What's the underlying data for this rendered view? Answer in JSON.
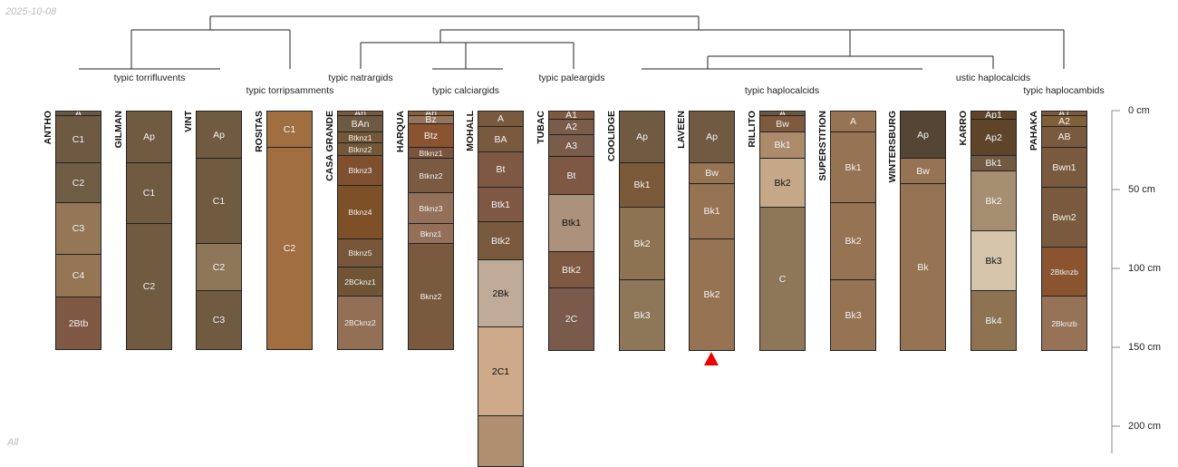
{
  "date": "2025-10-08",
  "subset_label": "All",
  "taxonomy_labels": [
    {
      "label": "typic torrifluvents"
    },
    {
      "label": "typic torripsamments"
    },
    {
      "label": "typic natrargids"
    },
    {
      "label": "typic calciargids"
    },
    {
      "label": "typic paleargids"
    },
    {
      "label": "typic haplocalcids"
    },
    {
      "label": "ustic haplocalcids"
    },
    {
      "label": "typic haplocambids"
    }
  ],
  "depth_axis": {
    "ticks": [
      0,
      50,
      100,
      150,
      200
    ],
    "unit": "cm",
    "labels": [
      "0 cm",
      "50 cm",
      "100 cm",
      "150 cm",
      "200 cm"
    ]
  },
  "marker": {
    "profile": "LAVEEN",
    "color": "#ee0000"
  },
  "profiles": [
    {
      "name": "ANTHO",
      "horizons": [
        {
          "name": "A",
          "top": 0,
          "bottom": 3,
          "color": "#6b5843"
        },
        {
          "name": "C1",
          "top": 3,
          "bottom": 33,
          "color": "#6e5a42"
        },
        {
          "name": "C2",
          "top": 33,
          "bottom": 58,
          "color": "#6f5c44"
        },
        {
          "name": "C3",
          "top": 58,
          "bottom": 91,
          "color": "#957656"
        },
        {
          "name": "C4",
          "top": 91,
          "bottom": 118,
          "color": "#957554"
        },
        {
          "name": "2Btb",
          "top": 118,
          "bottom": 151,
          "color": "#7e5843"
        }
      ]
    },
    {
      "name": "GILMAN",
      "horizons": [
        {
          "name": "Ap",
          "top": 0,
          "bottom": 33,
          "color": "#705a40"
        },
        {
          "name": "C1",
          "top": 33,
          "bottom": 71,
          "color": "#705a40"
        },
        {
          "name": "C2",
          "top": 71,
          "bottom": 151,
          "color": "#705a40"
        }
      ]
    },
    {
      "name": "VINT",
      "horizons": [
        {
          "name": "Ap",
          "top": 0,
          "bottom": 30,
          "color": "#705a40"
        },
        {
          "name": "C1",
          "top": 30,
          "bottom": 84,
          "color": "#705a40"
        },
        {
          "name": "C2",
          "top": 84,
          "bottom": 114,
          "color": "#8e7659"
        },
        {
          "name": "C3",
          "top": 114,
          "bottom": 151,
          "color": "#705a40"
        }
      ]
    },
    {
      "name": "ROSITAS",
      "horizons": [
        {
          "name": "C1",
          "top": 0,
          "bottom": 23,
          "color": "#a06e40"
        },
        {
          "name": "C2",
          "top": 23,
          "bottom": 151,
          "color": "#a06e40"
        }
      ]
    },
    {
      "name": "CASA GRANDE",
      "horizons": [
        {
          "name": "An",
          "top": 0,
          "bottom": 3,
          "color": "#7a5a3e"
        },
        {
          "name": "BAn",
          "top": 3,
          "bottom": 13,
          "color": "#6e5a42"
        },
        {
          "name": "Btknz1",
          "top": 13,
          "bottom": 20,
          "color": "#735838"
        },
        {
          "name": "Btknz2",
          "top": 20,
          "bottom": 28,
          "color": "#735838"
        },
        {
          "name": "Btknz3",
          "top": 28,
          "bottom": 47,
          "color": "#7e5030"
        },
        {
          "name": "Btknz4",
          "top": 47,
          "bottom": 81,
          "color": "#7e5028"
        },
        {
          "name": "Btknz5",
          "top": 81,
          "bottom": 99,
          "color": "#775639"
        },
        {
          "name": "2BCknz1",
          "top": 99,
          "bottom": 117,
          "color": "#6f5535"
        },
        {
          "name": "2BCknz2",
          "top": 117,
          "bottom": 151,
          "color": "#936f55"
        }
      ]
    },
    {
      "name": "HARQUA",
      "horizons": [
        {
          "name": "Ap",
          "top": 0,
          "bottom": 3,
          "color": "#8a5e3a"
        },
        {
          "name": "Bz",
          "top": 3,
          "bottom": 8,
          "color": "#94745a"
        },
        {
          "name": "Btz",
          "top": 8,
          "bottom": 23,
          "color": "#8a5430"
        },
        {
          "name": "Btknz1",
          "top": 23,
          "bottom": 30,
          "color": "#7a5440"
        },
        {
          "name": "Btknz2",
          "top": 30,
          "bottom": 52,
          "color": "#7a5a40"
        },
        {
          "name": "Btknz3",
          "top": 52,
          "bottom": 71,
          "color": "#94705a"
        },
        {
          "name": "Bknz1",
          "top": 71,
          "bottom": 84,
          "color": "#94705a"
        },
        {
          "name": "Bknz2",
          "top": 84,
          "bottom": 151,
          "color": "#7a5a3e"
        }
      ]
    },
    {
      "name": "MOHALL",
      "horizons": [
        {
          "name": "A",
          "top": 0,
          "bottom": 10,
          "color": "#7a5a3e"
        },
        {
          "name": "BA",
          "top": 10,
          "bottom": 26,
          "color": "#7a5a3e"
        },
        {
          "name": "Bt",
          "top": 26,
          "bottom": 48,
          "color": "#7e5842"
        },
        {
          "name": "Btk1",
          "top": 48,
          "bottom": 70,
          "color": "#7e5842"
        },
        {
          "name": "Btk2",
          "top": 70,
          "bottom": 94,
          "color": "#7a5a3e"
        },
        {
          "name": "2Bk",
          "top": 94,
          "bottom": 137,
          "color": "#c0ab98"
        },
        {
          "name": "2C1",
          "top": 137,
          "bottom": 193,
          "color": "#cea98a"
        },
        {
          "name": "",
          "top": 193,
          "bottom": 225,
          "color": "#b08e70"
        }
      ]
    },
    {
      "name": "TUBAC",
      "horizons": [
        {
          "name": "A1",
          "top": 0,
          "bottom": 5,
          "color": "#7e5a40"
        },
        {
          "name": "A2",
          "top": 5,
          "bottom": 15,
          "color": "#7a5c4a"
        },
        {
          "name": "A3",
          "top": 15,
          "bottom": 29,
          "color": "#7a5c4a"
        },
        {
          "name": "Bt",
          "top": 29,
          "bottom": 53,
          "color": "#7e5842"
        },
        {
          "name": "Btk1",
          "top": 53,
          "bottom": 89,
          "color": "#ac917c"
        },
        {
          "name": "Btk2",
          "top": 89,
          "bottom": 112,
          "color": "#7e5840"
        },
        {
          "name": "2C",
          "top": 112,
          "bottom": 152,
          "color": "#7a5a4a"
        }
      ]
    },
    {
      "name": "COOLIDGE",
      "horizons": [
        {
          "name": "Ap",
          "top": 0,
          "bottom": 33,
          "color": "#705a42"
        },
        {
          "name": "Bk1",
          "top": 33,
          "bottom": 61,
          "color": "#7a5a38"
        },
        {
          "name": "Bk2",
          "top": 61,
          "bottom": 107,
          "color": "#8e7352"
        },
        {
          "name": "Bk3",
          "top": 107,
          "bottom": 152,
          "color": "#8e7659"
        }
      ]
    },
    {
      "name": "LAVEEN",
      "horizons": [
        {
          "name": "Ap",
          "top": 0,
          "bottom": 33,
          "color": "#705a42"
        },
        {
          "name": "Bw",
          "top": 33,
          "bottom": 46,
          "color": "#967352"
        },
        {
          "name": "Bk1",
          "top": 46,
          "bottom": 81,
          "color": "#967352"
        },
        {
          "name": "Bk2",
          "top": 81,
          "bottom": 152,
          "color": "#967352"
        }
      ]
    },
    {
      "name": "RILLITO",
      "horizons": [
        {
          "name": "A",
          "top": 0,
          "bottom": 3,
          "color": "#6b5843"
        },
        {
          "name": "Bw",
          "top": 3,
          "bottom": 13,
          "color": "#7e5a3e"
        },
        {
          "name": "Bk1",
          "top": 13,
          "bottom": 30,
          "color": "#ac8a6c"
        },
        {
          "name": "Bk2",
          "top": 30,
          "bottom": 61,
          "color": "#c4a888"
        },
        {
          "name": "C",
          "top": 61,
          "bottom": 152,
          "color": "#8e7659"
        }
      ]
    },
    {
      "name": "SUPERSTITION",
      "horizons": [
        {
          "name": "A",
          "top": 0,
          "bottom": 13,
          "color": "#967352"
        },
        {
          "name": "Bk1",
          "top": 13,
          "bottom": 58,
          "color": "#967352"
        },
        {
          "name": "Bk2",
          "top": 58,
          "bottom": 107,
          "color": "#967352"
        },
        {
          "name": "Bk3",
          "top": 107,
          "bottom": 152,
          "color": "#967352"
        }
      ]
    },
    {
      "name": "WINTERSBURG",
      "horizons": [
        {
          "name": "Ap",
          "top": 0,
          "bottom": 30,
          "color": "#554535"
        },
        {
          "name": "Bw",
          "top": 30,
          "bottom": 46,
          "color": "#967352"
        },
        {
          "name": "Bk",
          "top": 46,
          "bottom": 152,
          "color": "#967352"
        }
      ]
    },
    {
      "name": "KARRO",
      "horizons": [
        {
          "name": "Ap1",
          "top": 0,
          "bottom": 5,
          "color": "#5e4428"
        },
        {
          "name": "Ap2",
          "top": 5,
          "bottom": 28,
          "color": "#5e4428"
        },
        {
          "name": "Bk1",
          "top": 28,
          "bottom": 38,
          "color": "#705a42"
        },
        {
          "name": "Bk2",
          "top": 38,
          "bottom": 76,
          "color": "#a68e70"
        },
        {
          "name": "Bk3",
          "top": 76,
          "bottom": 114,
          "color": "#d6c4ab"
        },
        {
          "name": "Bk4",
          "top": 114,
          "bottom": 152,
          "color": "#8e7352"
        }
      ]
    },
    {
      "name": "PAHAKA",
      "horizons": [
        {
          "name": "A1",
          "top": 0,
          "bottom": 3,
          "color": "#7a5a3e"
        },
        {
          "name": "A2",
          "top": 3,
          "bottom": 10,
          "color": "#806038"
        },
        {
          "name": "AB",
          "top": 10,
          "bottom": 23,
          "color": "#7a5a3e"
        },
        {
          "name": "Bwn1",
          "top": 23,
          "bottom": 48,
          "color": "#7a5a3e"
        },
        {
          "name": "Bwn2",
          "top": 48,
          "bottom": 86,
          "color": "#7a5a3e"
        },
        {
          "name": "2Btknzb",
          "top": 86,
          "bottom": 117,
          "color": "#8a5430"
        },
        {
          "name": "2Bknzb",
          "top": 117,
          "bottom": 152,
          "color": "#967357"
        }
      ]
    }
  ]
}
